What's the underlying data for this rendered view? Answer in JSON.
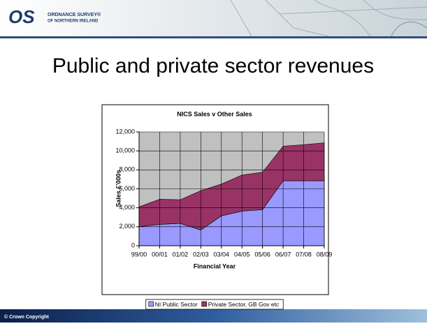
{
  "slide": {
    "logo": "OS",
    "logo_line1": "ORDNANCE SURVEY®",
    "logo_line2": "OF NORTHERN IRELAND",
    "title": "Public and private sector revenues",
    "footer": "© Crown Copyright"
  },
  "chart_data": {
    "type": "area",
    "stacked": true,
    "title": "NICS Sales v Other Sales",
    "x_label": "Financial Year",
    "y_label": "Sales £'000s",
    "categories": [
      "99/00",
      "00/01",
      "01/02",
      "02/03",
      "03/04",
      "04/05",
      "05/06",
      "06/07",
      "07/08",
      "08/09"
    ],
    "series": [
      {
        "name": "NI Public Sector",
        "color": "#9999ff",
        "values": [
          2000,
          2250,
          2350,
          1650,
          3150,
          3650,
          3800,
          6850,
          6850,
          6850
        ]
      },
      {
        "name": "Private Sector, GB Gov etc",
        "color": "#993366",
        "values": [
          2100,
          2650,
          2500,
          4150,
          3350,
          3800,
          3950,
          3650,
          3800,
          4000
        ]
      }
    ],
    "ylim": [
      0,
      12000
    ],
    "yticks": [
      0,
      {
        "value": 2000,
        "label": "2,000"
      },
      {
        "value": 4000,
        "label": "4,000"
      },
      {
        "value": 6000,
        "label": "6,000"
      },
      {
        "value": 8000,
        "label": "8,000"
      },
      {
        "value": 10000,
        "label": "10,000"
      },
      {
        "value": 12000,
        "label": "12,000"
      }
    ],
    "grid": true,
    "plot_background": "#c0c0c0",
    "legend": "bottom"
  }
}
